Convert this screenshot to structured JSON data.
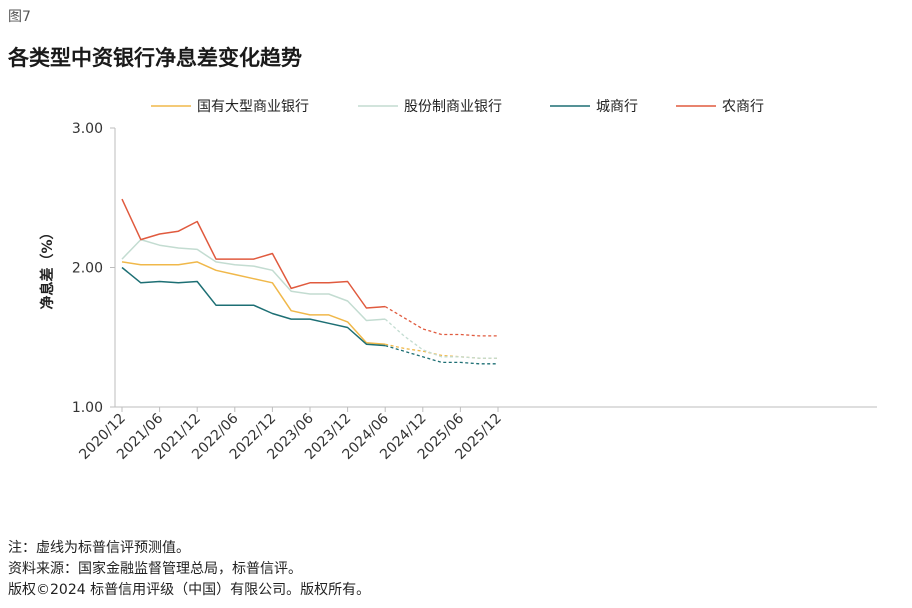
{
  "figure_label": "图7",
  "title": "各类型中资银行净息差变化趋势",
  "notes": {
    "note": "注：虚线为标普信评预测值。",
    "source": "资料来源：国家金融监督管理总局，标普信评。",
    "copyright": "版权©2024 标普信用评级（中国）有限公司。版权所有。"
  },
  "chart_data": {
    "type": "line",
    "ylabel": "净息差（%）",
    "xlabel": "",
    "ylim": [
      1.0,
      3.0
    ],
    "yticks": [
      "1.00",
      "2.00",
      "3.00"
    ],
    "x_labels": [
      "2020/12",
      "2021/06",
      "2021/12",
      "2022/06",
      "2022/12",
      "2023/06",
      "2023/12",
      "2024/06",
      "2024/12",
      "2025/06",
      "2025/12"
    ],
    "x": [
      "2020/12",
      "2021/03",
      "2021/06",
      "2021/09",
      "2021/12",
      "2022/03",
      "2022/06",
      "2022/09",
      "2022/12",
      "2023/03",
      "2023/06",
      "2023/09",
      "2023/12",
      "2024/03",
      "2024/06",
      "2024/09",
      "2024/12",
      "2025/03",
      "2025/06",
      "2025/09",
      "2025/12"
    ],
    "forecast_from": "2024/06",
    "legend_position": "top",
    "grid": false,
    "series": [
      {
        "name": "国有大型商业银行",
        "color": "#f0b84a",
        "values": [
          2.04,
          2.02,
          2.02,
          2.02,
          2.04,
          1.98,
          1.95,
          1.92,
          1.89,
          1.69,
          1.66,
          1.66,
          1.61,
          1.46,
          1.45,
          1.42,
          1.4,
          1.37,
          1.36,
          1.35,
          1.35
        ]
      },
      {
        "name": "股份制商业银行",
        "color": "#c3dcd1",
        "values": [
          2.06,
          2.2,
          2.16,
          2.14,
          2.13,
          2.04,
          2.02,
          2.01,
          1.98,
          1.83,
          1.81,
          1.81,
          1.76,
          1.62,
          1.63,
          1.51,
          1.41,
          1.36,
          1.36,
          1.35,
          1.35
        ]
      },
      {
        "name": "城商行",
        "color": "#1d6f74",
        "values": [
          2.0,
          1.89,
          1.9,
          1.89,
          1.9,
          1.73,
          1.73,
          1.73,
          1.67,
          1.63,
          1.63,
          1.6,
          1.57,
          1.45,
          1.44,
          1.4,
          1.36,
          1.32,
          1.32,
          1.31,
          1.31
        ]
      },
      {
        "name": "农商行",
        "color": "#e05a3e",
        "values": [
          2.49,
          2.2,
          2.24,
          2.26,
          2.33,
          2.06,
          2.06,
          2.06,
          2.1,
          1.85,
          1.89,
          1.89,
          1.9,
          1.71,
          1.72,
          1.64,
          1.56,
          1.52,
          1.52,
          1.51,
          1.51
        ]
      }
    ]
  }
}
